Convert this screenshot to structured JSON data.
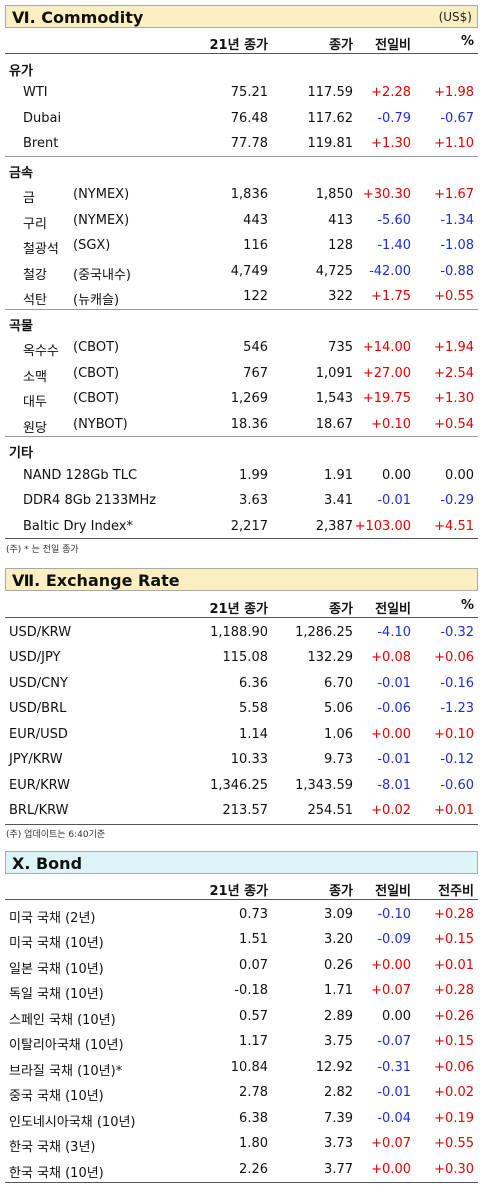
{
  "commodity": {
    "title": "Ⅵ. Commodity",
    "unit": "(US$)",
    "header": {
      "base": "21년 종가",
      "close": "종가",
      "dod": "전일비",
      "pct": "%"
    },
    "groups": [
      {
        "label": "유가",
        "rows": [
          {
            "name": "WTI",
            "exch": "",
            "base": "75.21",
            "close": "117.59",
            "dod": "+2.28",
            "pct": "+1.98"
          },
          {
            "name": "Dubai",
            "exch": "",
            "base": "76.48",
            "close": "117.62",
            "dod": "-0.79",
            "pct": "-0.67"
          },
          {
            "name": "Brent",
            "exch": "",
            "base": "77.78",
            "close": "119.81",
            "dod": "+1.30",
            "pct": "+1.10"
          }
        ]
      },
      {
        "label": "금속",
        "rows": [
          {
            "name": "금",
            "exch": "(NYMEX)",
            "base": "1,836",
            "close": "1,850",
            "dod": "+30.30",
            "pct": "+1.67"
          },
          {
            "name": "구리",
            "exch": "(NYMEX)",
            "base": "443",
            "close": "413",
            "dod": "-5.60",
            "pct": "-1.34"
          },
          {
            "name": "철광석",
            "exch": "(SGX)",
            "base": "116",
            "close": "128",
            "dod": "-1.40",
            "pct": "-1.08"
          },
          {
            "name": "철강",
            "exch": "(중국내수)",
            "base": "4,749",
            "close": "4,725",
            "dod": "-42.00",
            "pct": "-0.88"
          },
          {
            "name": "석탄",
            "exch": "(뉴캐슬)",
            "base": "122",
            "close": "322",
            "dod": "+1.75",
            "pct": "+0.55"
          }
        ]
      },
      {
        "label": "곡물",
        "rows": [
          {
            "name": "옥수수",
            "exch": "(CBOT)",
            "base": "546",
            "close": "735",
            "dod": "+14.00",
            "pct": "+1.94"
          },
          {
            "name": "소맥",
            "exch": "(CBOT)",
            "base": "767",
            "close": "1,091",
            "dod": "+27.00",
            "pct": "+2.54"
          },
          {
            "name": "대두",
            "exch": "(CBOT)",
            "base": "1,269",
            "close": "1,543",
            "dod": "+19.75",
            "pct": "+1.30"
          },
          {
            "name": "원당",
            "exch": "(NYBOT)",
            "base": "18.36",
            "close": "18.67",
            "dod": "+0.10",
            "pct": "+0.54"
          }
        ]
      },
      {
        "label": "기타",
        "rows": [
          {
            "name": "NAND 128Gb TLC",
            "exch": "",
            "base": "1.99",
            "close": "1.91",
            "dod": "0.00",
            "pct": "0.00"
          },
          {
            "name": "DDR4 8Gb 2133MHz",
            "exch": "",
            "base": "3.63",
            "close": "3.41",
            "dod": "-0.01",
            "pct": "-0.29"
          },
          {
            "name": "Baltic Dry Index*",
            "exch": "",
            "base": "2,217",
            "close": "2,387",
            "dod": "+103.00",
            "pct": "+4.51"
          }
        ]
      }
    ],
    "note": "(주) * 는 전일 종가"
  },
  "exchange": {
    "title": "Ⅶ. Exchange Rate",
    "header": {
      "base": "21년 종가",
      "close": "종가",
      "dod": "전일비",
      "pct": "%"
    },
    "rows": [
      {
        "name": "USD/KRW",
        "base": "1,188.90",
        "close": "1,286.25",
        "dod": "-4.10",
        "pct": "-0.32"
      },
      {
        "name": "USD/JPY",
        "base": "115.08",
        "close": "132.29",
        "dod": "+0.08",
        "pct": "+0.06"
      },
      {
        "name": "USD/CNY",
        "base": "6.36",
        "close": "6.70",
        "dod": "-0.01",
        "pct": "-0.16"
      },
      {
        "name": "USD/BRL",
        "base": "5.58",
        "close": "5.06",
        "dod": "-0.06",
        "pct": "-1.23"
      },
      {
        "name": "EUR/USD",
        "base": "1.14",
        "close": "1.06",
        "dod": "+0.00",
        "pct": "+0.10"
      },
      {
        "name": "JPY/KRW",
        "base": "10.33",
        "close": "9.73",
        "dod": "-0.01",
        "pct": "-0.12"
      },
      {
        "name": "EUR/KRW",
        "base": "1,346.25",
        "close": "1,343.59",
        "dod": "-8.01",
        "pct": "-0.60"
      },
      {
        "name": "BRL/KRW",
        "base": "213.57",
        "close": "254.51",
        "dod": "+0.02",
        "pct": "+0.01"
      }
    ],
    "note": "(주) 업데이트는 6:40기준"
  },
  "bond": {
    "title": "X. Bond",
    "header": {
      "base": "21년 종가",
      "close": "종가",
      "dod": "전일비",
      "pct": "전주비"
    },
    "rows": [
      {
        "name": "미국 국채 (2년)",
        "base": "0.73",
        "close": "3.09",
        "dod": "-0.10",
        "pct": "+0.28"
      },
      {
        "name": "미국 국채 (10년)",
        "base": "1.51",
        "close": "3.20",
        "dod": "-0.09",
        "pct": "+0.15"
      },
      {
        "name": "일본 국채 (10년)",
        "base": "0.07",
        "close": "0.26",
        "dod": "+0.00",
        "pct": "+0.01"
      },
      {
        "name": "독일 국채 (10년)",
        "base": "-0.18",
        "close": "1.71",
        "dod": "+0.07",
        "pct": "+0.28"
      },
      {
        "name": "스페인 국채 (10년)",
        "base": "0.57",
        "close": "2.89",
        "dod": "0.00",
        "pct": "+0.26"
      },
      {
        "name": "이탈리아국채 (10년)",
        "base": "1.17",
        "close": "3.75",
        "dod": "-0.07",
        "pct": "+0.15"
      },
      {
        "name": "브라질 국채 (10년)*",
        "base": "10.84",
        "close": "12.92",
        "dod": "-0.31",
        "pct": "+0.06"
      },
      {
        "name": "중국 국채 (10년)",
        "base": "2.78",
        "close": "2.82",
        "dod": "-0.01",
        "pct": "+0.02"
      },
      {
        "name": "인도네시아국채 (10년)",
        "base": "6.38",
        "close": "7.39",
        "dod": "-0.04",
        "pct": "+0.19"
      },
      {
        "name": "한국 국채 (3년)",
        "base": "1.80",
        "close": "3.73",
        "dod": "+0.07",
        "pct": "+0.55"
      },
      {
        "name": "한국 국채 (10년)",
        "base": "2.26",
        "close": "3.77",
        "dod": "+0.00",
        "pct": "+0.30"
      }
    ]
  },
  "colors": {
    "commodity_header": "#fbeec1",
    "exchange_header": "#fbeec1",
    "bond_header": "#ddf5f8",
    "up": "#e60000",
    "down": "#1c2fd6"
  }
}
